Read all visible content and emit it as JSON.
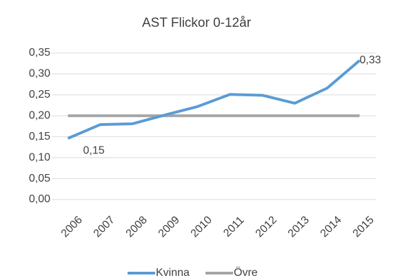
{
  "chart_data": {
    "type": "line",
    "title": "AST Flickor 0-12år",
    "categories": [
      "2006",
      "2007",
      "2008",
      "2009",
      "2010",
      "2011",
      "2012",
      "2013",
      "2014",
      "2015"
    ],
    "series": [
      {
        "name": "Kvinna",
        "color": "#5b9bd5",
        "values": [
          0.146,
          0.179,
          0.181,
          0.202,
          0.222,
          0.251,
          0.249,
          0.23,
          0.266,
          0.332
        ],
        "value_labels": [
          "0,15",
          null,
          null,
          null,
          null,
          null,
          null,
          null,
          null,
          "0,33"
        ]
      },
      {
        "name": "Övre",
        "color": "#a5a5a5",
        "values": [
          0.2,
          0.2,
          0.2,
          0.2,
          0.2,
          0.2,
          0.2,
          0.2,
          0.2,
          0.2
        ]
      }
    ],
    "ylim": [
      0,
      0.35
    ],
    "yticks": [
      {
        "value": 0,
        "label": "0,00"
      },
      {
        "value": 0.05,
        "label": "0,05"
      },
      {
        "value": 0.1,
        "label": "0,10"
      },
      {
        "value": 0.15,
        "label": "0,15"
      },
      {
        "value": 0.2,
        "label": "0,20"
      },
      {
        "value": 0.25,
        "label": "0,25"
      },
      {
        "value": 0.3,
        "label": "0,30"
      },
      {
        "value": 0.35,
        "label": "0,35"
      }
    ],
    "grid": true,
    "legend": "bottom"
  }
}
